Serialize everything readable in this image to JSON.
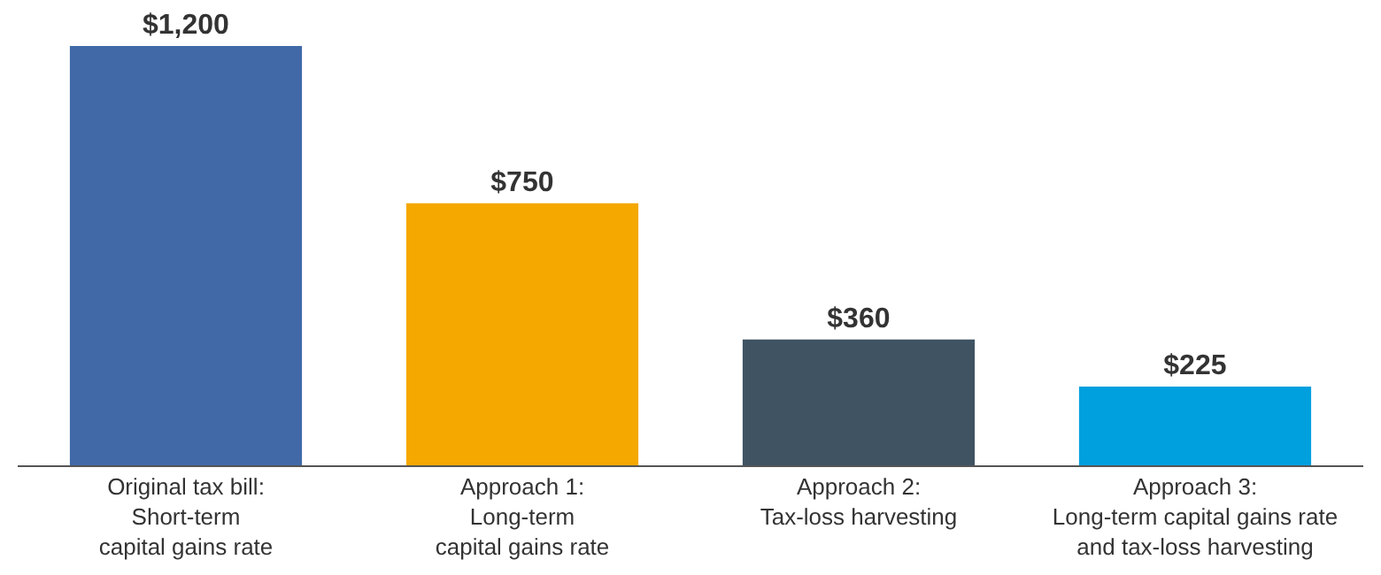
{
  "chart_data": {
    "type": "bar",
    "categories": [
      "Original tax bill:\nShort-term\ncapital gains rate",
      "Approach 1:\nLong-term\ncapital gains rate",
      "Approach 2:\nTax-loss harvesting",
      "Approach 3:\nLong-term capital gains rate\nand tax-loss harvesting"
    ],
    "values": [
      1200,
      750,
      360,
      225
    ],
    "colors": [
      "#4169a8",
      "#f5a800",
      "#3f5363",
      "#00a0df"
    ],
    "value_labels": [
      "$1,200",
      "$750",
      "$360",
      "$225"
    ],
    "grid": false,
    "legend": false
  }
}
